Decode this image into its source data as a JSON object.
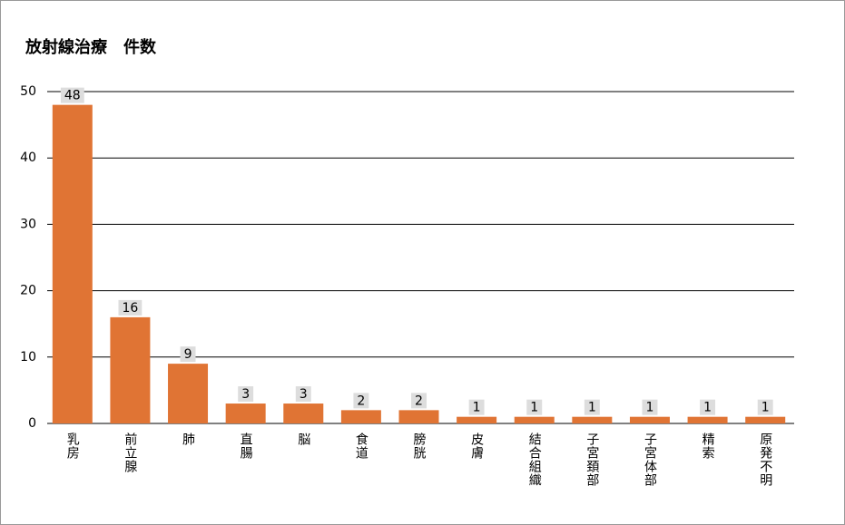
{
  "chart_data": {
    "type": "bar",
    "title": "放射線治療　件数",
    "categories": [
      "乳房",
      "前立腺",
      "肺",
      "直腸",
      "脳",
      "食道",
      "膀胱",
      "皮膚",
      "結合組織",
      "子宮頚部",
      "子宮体部",
      "精索",
      "原発不明"
    ],
    "values": [
      48,
      16,
      9,
      3,
      3,
      2,
      2,
      1,
      1,
      1,
      1,
      1,
      1
    ],
    "color": "#e07434",
    "ylim": [
      0,
      50
    ],
    "yticks": [
      0,
      10,
      20,
      30,
      40,
      50
    ],
    "grid": true
  }
}
